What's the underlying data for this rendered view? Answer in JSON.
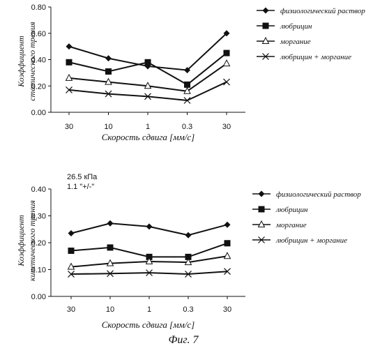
{
  "figure_caption": "Фиг. 7",
  "chart_data": [
    {
      "type": "line",
      "categories": [
        "30",
        "10",
        "1",
        "0.3",
        "30"
      ],
      "xlabel": "Скорость сдвига [мм/с]",
      "ylabel": [
        "Коэффициент",
        "статического трения"
      ],
      "ylim": [
        0,
        0.8
      ],
      "yticks": [
        "0.00",
        "0.20",
        "0.40",
        "0.60",
        "0.80"
      ],
      "grid": false,
      "legend_position": "right",
      "annotations": [],
      "series": [
        {
          "name": "физиологический раствор",
          "marker": "diamond",
          "values": [
            0.5,
            0.41,
            0.35,
            0.32,
            0.6
          ]
        },
        {
          "name": "любрицин",
          "marker": "square",
          "values": [
            0.38,
            0.31,
            0.38,
            0.21,
            0.45
          ]
        },
        {
          "name": "моргание",
          "marker": "triangle",
          "values": [
            0.26,
            0.23,
            0.2,
            0.16,
            0.37
          ]
        },
        {
          "name": "любрицин + моргание",
          "marker": "x",
          "values": [
            0.17,
            0.14,
            0.12,
            0.09,
            0.23
          ]
        }
      ]
    },
    {
      "type": "line",
      "categories": [
        "30",
        "10",
        "1",
        "0.3",
        "30"
      ],
      "xlabel": "Скорость сдвига [мм/с]",
      "ylabel": [
        "Коэффициент",
        "кинетического трения"
      ],
      "ylim": [
        0,
        0.4
      ],
      "yticks": [
        "0.00",
        "0.10",
        "0.20",
        "0.30",
        "0.40"
      ],
      "grid": false,
      "legend_position": "right",
      "annotations": [
        "26.5 кПа",
        "1.1  \"+/-\""
      ],
      "series": [
        {
          "name": "физиологический раствор",
          "marker": "diamond",
          "values": [
            0.235,
            0.272,
            0.26,
            0.228,
            0.267
          ]
        },
        {
          "name": "любрицин",
          "marker": "square",
          "values": [
            0.17,
            0.182,
            0.147,
            0.147,
            0.198
          ]
        },
        {
          "name": "моргание",
          "marker": "triangle",
          "values": [
            0.11,
            0.123,
            0.13,
            0.127,
            0.15
          ]
        },
        {
          "name": "любрицин + моргание",
          "marker": "x",
          "values": [
            0.083,
            0.085,
            0.088,
            0.083,
            0.093
          ]
        }
      ]
    }
  ]
}
